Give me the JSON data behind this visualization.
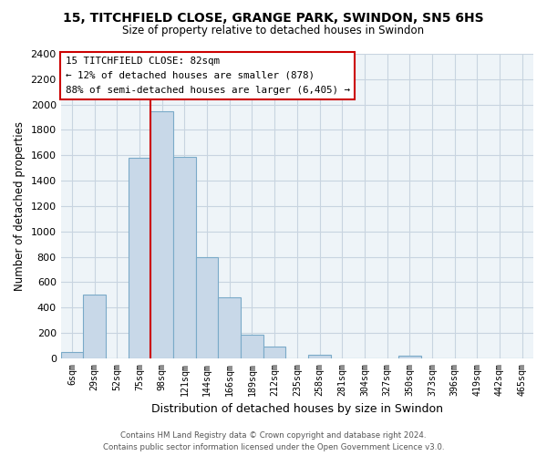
{
  "title1": "15, TITCHFIELD CLOSE, GRANGE PARK, SWINDON, SN5 6HS",
  "title2": "Size of property relative to detached houses in Swindon",
  "xlabel": "Distribution of detached houses by size in Swindon",
  "ylabel": "Number of detached properties",
  "bin_labels": [
    "6sqm",
    "29sqm",
    "52sqm",
    "75sqm",
    "98sqm",
    "121sqm",
    "144sqm",
    "166sqm",
    "189sqm",
    "212sqm",
    "235sqm",
    "258sqm",
    "281sqm",
    "304sqm",
    "327sqm",
    "350sqm",
    "373sqm",
    "396sqm",
    "419sqm",
    "442sqm",
    "465sqm"
  ],
  "bar_heights": [
    50,
    500,
    0,
    1580,
    1950,
    1590,
    800,
    480,
    185,
    90,
    0,
    30,
    0,
    0,
    0,
    20,
    0,
    0,
    0,
    0,
    0
  ],
  "bar_color": "#c8d8e8",
  "bar_edge_color": "#7aaac8",
  "vline_x": 3.5,
  "annotation_title": "15 TITCHFIELD CLOSE: 82sqm",
  "annotation_line1": "← 12% of detached houses are smaller (878)",
  "annotation_line2": "88% of semi-detached houses are larger (6,405) →",
  "annotation_box_color": "#ffffff",
  "annotation_box_edge": "#cc0000",
  "vline_color": "#cc0000",
  "footer1": "Contains HM Land Registry data © Crown copyright and database right 2024.",
  "footer2": "Contains public sector information licensed under the Open Government Licence v3.0.",
  "ylim": [
    0,
    2400
  ],
  "yticks": [
    0,
    200,
    400,
    600,
    800,
    1000,
    1200,
    1400,
    1600,
    1800,
    2000,
    2200,
    2400
  ],
  "grid_color": "#c8d4e0",
  "bg_color": "#eef4f8"
}
